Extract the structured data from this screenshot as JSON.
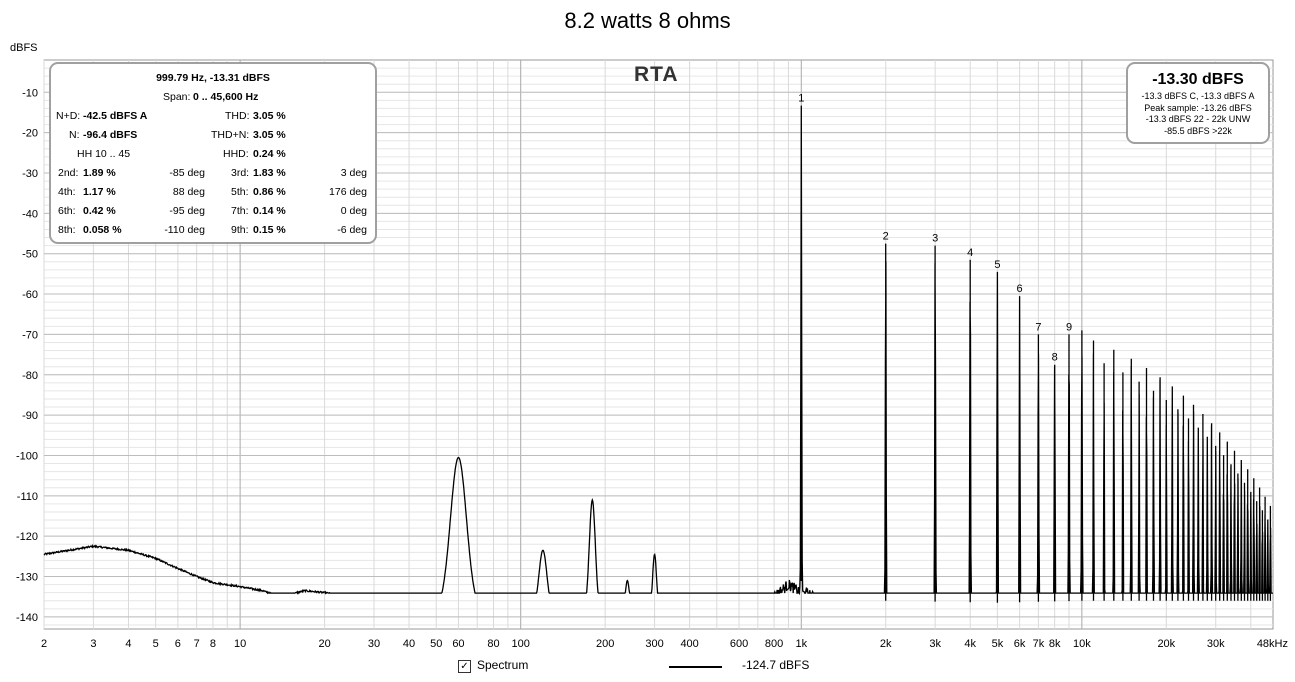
{
  "window": {
    "title": "8.2 watts 8 ohms"
  },
  "chart_data": {
    "type": "line",
    "title": "8.2 watts 8 ohms",
    "subtitle": "RTA",
    "ylabel": "dBFS",
    "xscale": "log",
    "xlim": [
      2,
      48000
    ],
    "ylim": [
      -143,
      -2
    ],
    "grid": true,
    "x_tick_labels": [
      {
        "v": 2,
        "t": "2"
      },
      {
        "v": 3,
        "t": "3"
      },
      {
        "v": 4,
        "t": "4"
      },
      {
        "v": 5,
        "t": "5"
      },
      {
        "v": 6,
        "t": "6"
      },
      {
        "v": 7,
        "t": "7"
      },
      {
        "v": 8,
        "t": "8"
      },
      {
        "v": 10,
        "t": "10"
      },
      {
        "v": 20,
        "t": "20"
      },
      {
        "v": 30,
        "t": "30"
      },
      {
        "v": 40,
        "t": "40"
      },
      {
        "v": 50,
        "t": "50"
      },
      {
        "v": 60,
        "t": "60"
      },
      {
        "v": 80,
        "t": "80"
      },
      {
        "v": 100,
        "t": "100"
      },
      {
        "v": 200,
        "t": "200"
      },
      {
        "v": 300,
        "t": "300"
      },
      {
        "v": 400,
        "t": "400"
      },
      {
        "v": 600,
        "t": "600"
      },
      {
        "v": 800,
        "t": "800"
      },
      {
        "v": 1000,
        "t": "1k"
      },
      {
        "v": 2000,
        "t": "2k"
      },
      {
        "v": 3000,
        "t": "3k"
      },
      {
        "v": 4000,
        "t": "4k"
      },
      {
        "v": 5000,
        "t": "5k"
      },
      {
        "v": 6000,
        "t": "6k"
      },
      {
        "v": 7000,
        "t": "7k"
      },
      {
        "v": 8000,
        "t": "8k"
      },
      {
        "v": 10000,
        "t": "10k"
      },
      {
        "v": 20000,
        "t": "20k"
      },
      {
        "v": 30000,
        "t": "30k"
      },
      {
        "v": 48000,
        "t": "48kHz"
      }
    ],
    "y_ticks": [
      -10,
      -20,
      -30,
      -40,
      -50,
      -60,
      -70,
      -80,
      -90,
      -100,
      -110,
      -120,
      -130,
      -140
    ],
    "series": [
      {
        "name": "Spectrum",
        "color": "#000000",
        "noise_floor": [
          [
            2,
            -124.5
          ],
          [
            3,
            -122.5
          ],
          [
            4,
            -123.5
          ],
          [
            5,
            -125.5
          ],
          [
            6,
            -128
          ],
          [
            7,
            -130
          ],
          [
            8,
            -131.5
          ],
          [
            10,
            -132.5
          ],
          [
            12,
            -133.5
          ],
          [
            14,
            -135
          ],
          [
            17,
            -133.5
          ],
          [
            20,
            -134
          ],
          [
            25,
            -135
          ],
          [
            28,
            -137
          ],
          [
            30,
            -136
          ],
          [
            33,
            -138
          ],
          [
            37,
            -137.5
          ],
          [
            42,
            -139.5
          ],
          [
            50,
            -139.5
          ],
          [
            55,
            -138
          ],
          [
            70,
            -139
          ],
          [
            80,
            -140
          ],
          [
            100,
            -138.5
          ],
          [
            150,
            -139
          ],
          [
            200,
            -138
          ],
          [
            300,
            -139
          ],
          [
            500,
            -138.5
          ],
          [
            700,
            -137
          ],
          [
            800,
            -135
          ],
          [
            900,
            -132
          ],
          [
            1100,
            -136
          ],
          [
            1200,
            -139
          ],
          [
            2000,
            -139
          ],
          [
            5000,
            -139.5
          ],
          [
            10000,
            -139
          ],
          [
            20000,
            -139
          ],
          [
            48000,
            -139
          ]
        ],
        "peaks": [
          {
            "f": 60,
            "db": -100.5,
            "w": 0.04
          },
          {
            "f": 120,
            "db": -123.5,
            "w": 0.02
          },
          {
            "f": 180,
            "db": -111,
            "w": 0.015
          },
          {
            "f": 240,
            "db": -131,
            "w": 0.01
          },
          {
            "f": 300,
            "db": -124.5,
            "w": 0.01
          },
          {
            "f": 1000,
            "db": -13.3,
            "w": 0.002
          },
          {
            "f": 2000,
            "db": -47.5,
            "w": 0.002
          },
          {
            "f": 3000,
            "db": -48,
            "w": 0.002
          },
          {
            "f": 4000,
            "db": -51.5,
            "w": 0.002
          },
          {
            "f": 5000,
            "db": -54.5,
            "w": 0.002
          },
          {
            "f": 6000,
            "db": -60.5,
            "w": 0.002
          },
          {
            "f": 7000,
            "db": -70,
            "w": 0.002
          },
          {
            "f": 8000,
            "db": -77.5,
            "w": 0.002
          },
          {
            "f": 9000,
            "db": -70,
            "w": 0.002
          },
          {
            "f": 10000,
            "db": -69,
            "w": 0.002
          }
        ],
        "harmonic_decay": {
          "start_harmonic": 11,
          "end_freq": 47000,
          "start_db": -73,
          "end_db": -114
        },
        "harmonic_labels": [
          {
            "f": 1000,
            "db": -13.3,
            "t": "1"
          },
          {
            "f": 2000,
            "db": -47.5,
            "t": "2"
          },
          {
            "f": 3000,
            "db": -48,
            "t": "3"
          },
          {
            "f": 4000,
            "db": -51.5,
            "t": "4"
          },
          {
            "f": 5000,
            "db": -54.5,
            "t": "5"
          },
          {
            "f": 6000,
            "db": -60.5,
            "t": "6"
          },
          {
            "f": 7000,
            "db": -70,
            "t": "7"
          },
          {
            "f": 8000,
            "db": -77.5,
            "t": "8"
          },
          {
            "f": 9000,
            "db": -70,
            "t": "9"
          }
        ]
      }
    ]
  },
  "info_panel": {
    "peak": "999.79 Hz, -13.31 dBFS",
    "span_label": "Span:",
    "span": "0 .. 45,600 Hz",
    "nd_label": "N+D:",
    "nd": "-42.5 dBFS A",
    "thd_label": "THD:",
    "thd": "3.05 %",
    "n_label": "N:",
    "n": "-96.4 dBFS",
    "thdn_label": "THD+N:",
    "thdn": "3.05 %",
    "hh_label": "HH 10 .. 45",
    "hhd_label": "HHD:",
    "hhd": "0.24 %",
    "harmonics": [
      {
        "l1": "2nd:",
        "v1": "1.89 %",
        "p1": "-85 deg",
        "l2": "3rd:",
        "v2": "1.83 %",
        "p2": "3 deg"
      },
      {
        "l1": "4th:",
        "v1": "1.17 %",
        "p1": "88 deg",
        "l2": "5th:",
        "v2": "0.86 %",
        "p2": "176 deg"
      },
      {
        "l1": "6th:",
        "v1": "0.42 %",
        "p1": "-95 deg",
        "l2": "7th:",
        "v2": "0.14 %",
        "p2": "0 deg"
      },
      {
        "l1": "8th:",
        "v1": "0.058 %",
        "p1": "-110 deg",
        "l2": "9th:",
        "v2": "0.15 %",
        "p2": "-6 deg"
      }
    ]
  },
  "level_panel": {
    "main": "-13.30 dBFS",
    "line1": "-13.3 dBFS C, -13.3 dBFS A",
    "line2": "Peak sample: -13.26 dBFS",
    "line3": "-13.3 dBFS 22 - 22k UNW",
    "line4": "-85.5 dBFS >22k"
  },
  "legend": {
    "checkbox_mark": "✓",
    "spectrum_label": "Spectrum",
    "value": "-124.7 dBFS"
  }
}
